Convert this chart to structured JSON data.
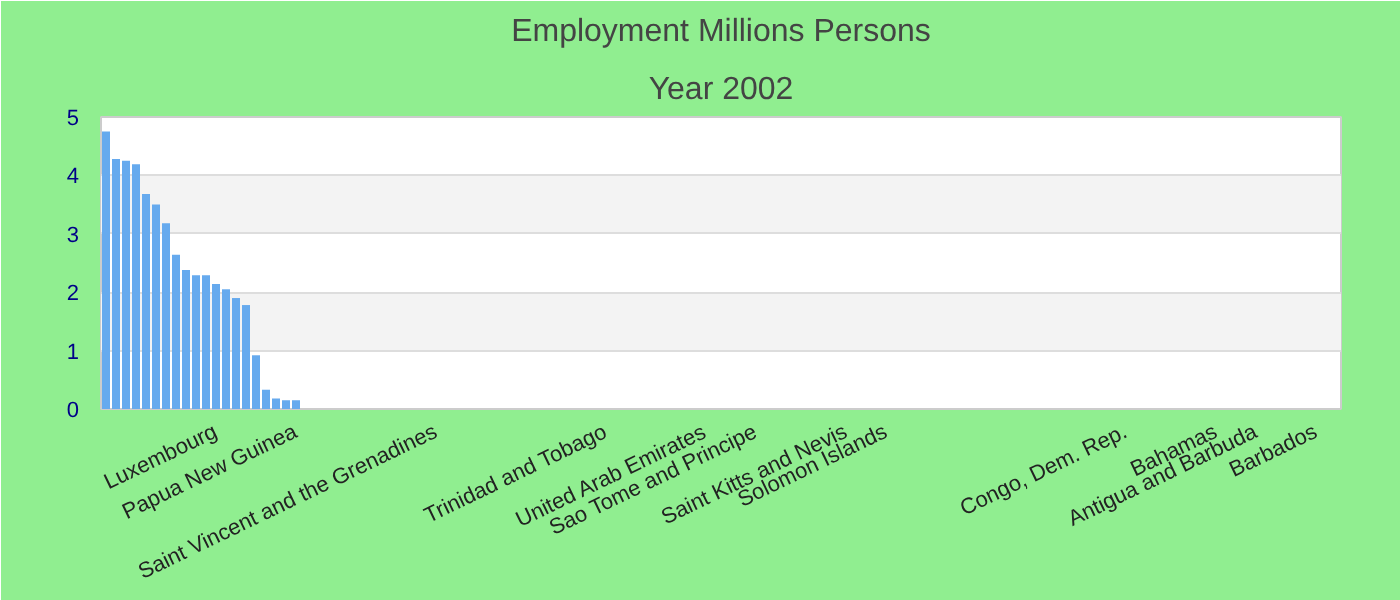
{
  "chart_data": {
    "type": "bar",
    "title": "Employment Millions Persons",
    "subtitle": "Year 2002",
    "categories": [
      null,
      null,
      null,
      null,
      null,
      null,
      null,
      null,
      null,
      null,
      null,
      "Luxembourg",
      null,
      null,
      null,
      null,
      null,
      null,
      null,
      "Papua New Guinea",
      null,
      null,
      null,
      null,
      null,
      null,
      null,
      null,
      null,
      null,
      null,
      null,
      null,
      "Saint Vincent and the Grenadines",
      null,
      null,
      null,
      null,
      null,
      null,
      null,
      null,
      null,
      null,
      null,
      null,
      null,
      null,
      null,
      null,
      "Trinidad and Tobago",
      null,
      null,
      null,
      null,
      null,
      null,
      null,
      null,
      null,
      "United Arab Emirates",
      null,
      null,
      null,
      null,
      "Sao Tome and Principe",
      null,
      null,
      null,
      null,
      null,
      null,
      null,
      null,
      "Saint Kitts and Nevis",
      null,
      null,
      null,
      "Solomon Islands",
      null,
      null,
      null,
      null,
      null,
      null,
      null,
      null,
      null,
      null,
      null,
      null,
      null,
      null,
      null,
      null,
      null,
      null,
      null,
      null,
      null,
      null,
      null,
      "Congo, Dem. Rep.",
      null,
      null,
      null,
      null,
      null,
      null,
      null,
      null,
      "Bahamas",
      null,
      null,
      null,
      "Antigua and Barbuda",
      null,
      null,
      null,
      null,
      null,
      "Barbados",
      null,
      null
    ],
    "values": [
      4.75,
      4.28,
      4.25,
      4.19,
      3.68,
      3.5,
      3.18,
      2.64,
      2.38,
      2.29,
      2.29,
      2.14,
      2.05,
      1.9,
      1.78,
      0.92,
      0.33,
      0.18,
      0.15,
      0.15,
      null,
      null,
      null,
      null,
      null,
      null,
      null,
      null,
      null,
      null,
      null,
      null,
      null,
      null,
      null,
      null,
      null,
      null,
      null,
      null,
      null,
      null,
      null,
      null,
      null,
      null,
      null,
      null,
      null,
      null,
      null,
      null,
      null,
      null,
      null,
      null,
      null,
      null,
      null,
      null,
      null,
      null,
      null,
      null,
      null,
      null,
      null,
      null,
      null,
      null,
      null,
      null,
      null,
      null,
      null,
      null,
      null,
      null,
      null,
      null,
      null,
      null,
      null,
      null,
      null,
      null,
      null,
      null,
      null,
      null,
      null,
      null,
      null,
      null,
      null,
      null,
      null,
      null,
      null,
      null,
      null,
      null,
      null,
      null,
      null,
      null,
      null,
      null,
      null,
      null,
      null,
      null,
      null,
      null,
      null,
      null,
      null,
      null,
      null,
      null,
      null,
      null,
      null,
      null
    ],
    "color": "#66aaee",
    "ylim": [
      0,
      5
    ],
    "yticks": [
      0,
      1,
      2,
      3,
      4,
      5
    ],
    "grid": "y"
  }
}
